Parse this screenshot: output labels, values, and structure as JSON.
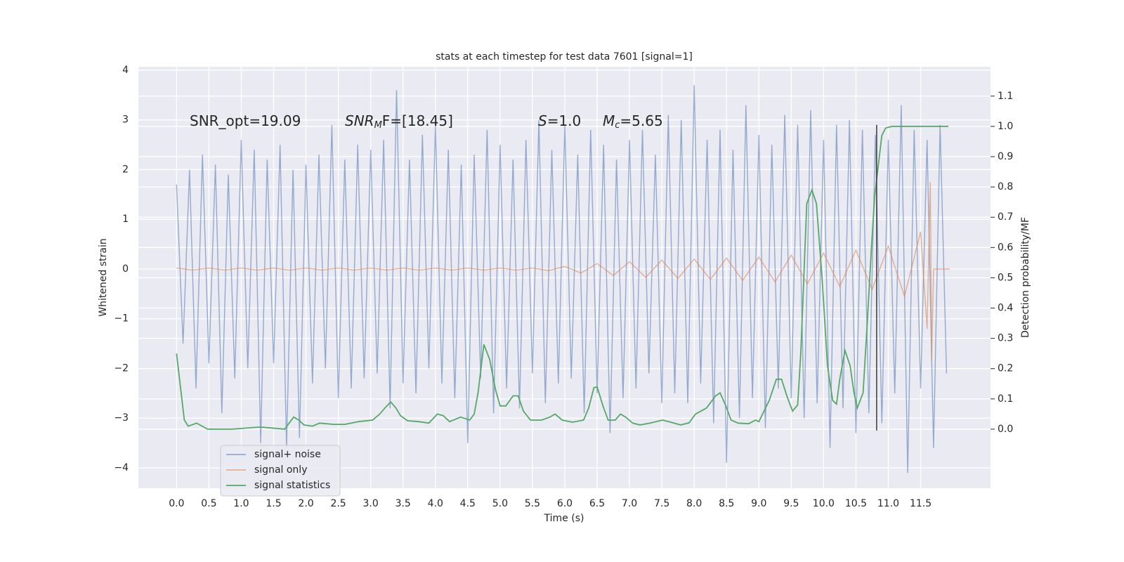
{
  "chart_data": {
    "type": "line",
    "title": "stats at each timestep for test data 7601 [signal=1]",
    "xlabel": "Time (s)",
    "ylabel": "Whitened strain",
    "y2label": "Detection probability/MF",
    "xlim": [
      -0.59,
      12.58
    ],
    "ylim": [
      -4.41,
      4.07
    ],
    "y2lim": [
      -0.195,
      1.197
    ],
    "xticks": [
      {
        "value": 0,
        "label": "0.0"
      },
      {
        "value": 0.5,
        "label": "0.5"
      },
      {
        "value": 1,
        "label": "1.0"
      },
      {
        "value": 1.5,
        "label": "1.5"
      },
      {
        "value": 2,
        "label": "2.0"
      },
      {
        "value": 2.5,
        "label": "2.5"
      },
      {
        "value": 3,
        "label": "3.0"
      },
      {
        "value": 3.5,
        "label": "3.5"
      },
      {
        "value": 4,
        "label": "4.0"
      },
      {
        "value": 4.5,
        "label": "4.5"
      },
      {
        "value": 5,
        "label": "5.0"
      },
      {
        "value": 5.5,
        "label": "5.5"
      },
      {
        "value": 6,
        "label": "6.0"
      },
      {
        "value": 6.5,
        "label": "6.5"
      },
      {
        "value": 7,
        "label": "7.0"
      },
      {
        "value": 7.5,
        "label": "7.5"
      },
      {
        "value": 8,
        "label": "8.0"
      },
      {
        "value": 8.5,
        "label": "8.5"
      },
      {
        "value": 9,
        "label": "9.0"
      },
      {
        "value": 9.5,
        "label": "9.5"
      },
      {
        "value": 10,
        "label": "10.0"
      },
      {
        "value": 10.5,
        "label": "10.5"
      },
      {
        "value": 11,
        "label": "11.0"
      },
      {
        "value": 11.5,
        "label": "11.5"
      }
    ],
    "yticks": [
      {
        "value": -4,
        "label": "−4"
      },
      {
        "value": -3,
        "label": "−3"
      },
      {
        "value": -2,
        "label": "−2"
      },
      {
        "value": -1,
        "label": "−1"
      },
      0,
      1,
      2,
      3,
      4
    ],
    "y2ticks": [
      {
        "value": 0,
        "label": "0.0"
      },
      {
        "value": 0.1,
        "label": "0.1"
      },
      {
        "value": 0.2,
        "label": "0.2"
      },
      {
        "value": 0.3,
        "label": "0.3"
      },
      {
        "value": 0.4,
        "label": "0.4"
      },
      {
        "value": 0.5,
        "label": "0.5"
      },
      {
        "value": 0.6,
        "label": "0.6"
      },
      {
        "value": 0.7,
        "label": "0.7"
      },
      {
        "value": 0.8,
        "label": "0.8"
      },
      {
        "value": 0.9,
        "label": "0.9"
      },
      {
        "value": 1,
        "label": "1.0"
      },
      {
        "value": 1.1,
        "label": "1.1"
      }
    ],
    "grid": true,
    "legend": "lower left",
    "annotations": [
      {
        "main": "SNR_opt=19.09"
      },
      {
        "main": "SNR",
        "sub": "M",
        "rest": "F=[18.45]"
      },
      {
        "main": "S",
        "rest": "=1.0"
      },
      {
        "main": "M",
        "sub": "c",
        "rest": "=5.65"
      }
    ],
    "vline": {
      "x": 10.82,
      "ymin": -3.25,
      "ymax": 2.9,
      "color": "#3a3a3a"
    },
    "series": [
      {
        "name": "signal+ noise",
        "color": "#4c72b0",
        "x": [
          0,
          0.1,
          0.2,
          0.3,
          0.4,
          0.5,
          0.6,
          0.7,
          0.8,
          0.9,
          1,
          1.1,
          1.2,
          1.3,
          1.4,
          1.5,
          1.6,
          1.7,
          1.8,
          1.9,
          2,
          2.1,
          2.2,
          2.3,
          2.4,
          2.5,
          2.6,
          2.7,
          2.8,
          2.9,
          3,
          3.1,
          3.2,
          3.3,
          3.4,
          3.5,
          3.6,
          3.7,
          3.8,
          3.9,
          4,
          4.1,
          4.2,
          4.3,
          4.4,
          4.5,
          4.6,
          4.7,
          4.8,
          4.9,
          5,
          5.1,
          5.2,
          5.3,
          5.4,
          5.5,
          5.6,
          5.7,
          5.8,
          5.9,
          6,
          6.1,
          6.2,
          6.3,
          6.4,
          6.5,
          6.6,
          6.7,
          6.8,
          6.9,
          7,
          7.1,
          7.2,
          7.3,
          7.4,
          7.5,
          7.6,
          7.7,
          7.8,
          7.9,
          8,
          8.1,
          8.2,
          8.3,
          8.4,
          8.5,
          8.6,
          8.7,
          8.8,
          8.9,
          9,
          9.1,
          9.2,
          9.3,
          9.4,
          9.5,
          9.6,
          9.7,
          9.8,
          9.9,
          10,
          10.1,
          10.2,
          10.3,
          10.4,
          10.5,
          10.6,
          10.7,
          10.8,
          10.9,
          11,
          11.1,
          11.2,
          11.3,
          11.4,
          11.5,
          11.6,
          11.7,
          11.8,
          11.9
        ],
        "values": [
          1.7,
          -1.5,
          2.0,
          -2.4,
          2.3,
          -1.9,
          2.1,
          -2.9,
          1.9,
          -2.2,
          2.6,
          -2.0,
          2.4,
          -3.5,
          2.2,
          -1.9,
          2.5,
          -3.6,
          2.0,
          -3.4,
          2.1,
          -2.3,
          2.3,
          -2.0,
          2.9,
          -2.6,
          2.2,
          -2.4,
          2.5,
          -2.2,
          2.4,
          -2.1,
          2.6,
          -2.8,
          3.6,
          -2.3,
          2.2,
          -2.5,
          2.7,
          -2.0,
          2.9,
          -2.3,
          2.4,
          -2.6,
          2.1,
          -3.5,
          2.3,
          -2.2,
          2.8,
          -2.9,
          2.5,
          -2.4,
          2.2,
          -2.8,
          2.6,
          -2.1,
          3.0,
          -2.7,
          2.4,
          -2.3,
          2.9,
          -2.2,
          2.3,
          -2.9,
          2.8,
          -2.5,
          2.5,
          -3.3,
          2.2,
          -2.6,
          2.6,
          -2.4,
          2.8,
          -2.1,
          2.3,
          -2.7,
          3.1,
          -2.5,
          3.0,
          -2.7,
          3.7,
          -2.3,
          2.6,
          -3.1,
          2.8,
          -3.9,
          2.4,
          -3.0,
          3.3,
          -2.6,
          2.7,
          -3.2,
          2.5,
          -2.4,
          3.1,
          -2.6,
          2.9,
          -3.0,
          3.2,
          -2.7,
          2.6,
          -3.6,
          2.9,
          -2.8,
          3.0,
          -3.3,
          2.8,
          -2.9,
          2.7,
          -3.1,
          2.6,
          -2.5,
          3.3,
          -4.1,
          2.8,
          -2.4,
          2.6,
          -3.6,
          2.9,
          -2.1
        ]
      },
      {
        "name": "signal only",
        "color": "#dd8452",
        "x": [
          0,
          0.25,
          0.5,
          0.75,
          1,
          1.25,
          1.5,
          1.75,
          2,
          2.25,
          2.5,
          2.75,
          3,
          3.25,
          3.5,
          3.75,
          4,
          4.25,
          4.5,
          4.75,
          5,
          5.25,
          5.5,
          5.75,
          6,
          6.25,
          6.5,
          6.75,
          7,
          7.25,
          7.5,
          7.75,
          8,
          8.25,
          8.5,
          8.75,
          9,
          9.25,
          9.5,
          9.75,
          10,
          10.25,
          10.5,
          10.75,
          11,
          11.25,
          11.5,
          11.6,
          11.65,
          11.67,
          11.7,
          11.95
        ],
        "values": [
          0.02,
          -0.02,
          0.02,
          -0.02,
          0.02,
          -0.02,
          0.02,
          -0.02,
          0.02,
          -0.02,
          0.02,
          -0.02,
          0.02,
          -0.02,
          0.02,
          -0.02,
          0.02,
          -0.02,
          0.02,
          -0.02,
          0.02,
          -0.02,
          0.02,
          -0.03,
          0.05,
          -0.08,
          0.11,
          -0.13,
          0.15,
          -0.17,
          0.18,
          -0.19,
          0.2,
          -0.21,
          0.22,
          -0.23,
          0.24,
          -0.26,
          0.28,
          -0.3,
          0.32,
          -0.35,
          0.38,
          -0.41,
          0.46,
          -0.55,
          0.75,
          -1.2,
          1.75,
          -1.85,
          0,
          0
        ]
      },
      {
        "name": "signal statistics",
        "color": "#55a868",
        "axis": "y2",
        "x": [
          0,
          0.12,
          0.18,
          0.31,
          0.48,
          0.86,
          1.29,
          1.67,
          1.81,
          1.89,
          1.97,
          2.1,
          2.21,
          2.43,
          2.6,
          2.81,
          3.03,
          3.14,
          3.22,
          3.31,
          3.39,
          3.46,
          3.57,
          3.74,
          3.9,
          4.03,
          4.12,
          4.22,
          4.39,
          4.53,
          4.6,
          4.66,
          4.75,
          4.84,
          4.93,
          5.0,
          5.09,
          5.2,
          5.28,
          5.36,
          5.47,
          5.64,
          5.77,
          5.85,
          5.96,
          6.12,
          6.29,
          6.37,
          6.45,
          6.5,
          6.59,
          6.67,
          6.78,
          6.86,
          6.94,
          7.05,
          7.16,
          7.32,
          7.51,
          7.64,
          7.79,
          7.92,
          8.02,
          8.19,
          8.33,
          8.4,
          8.49,
          8.57,
          8.68,
          8.84,
          8.95,
          9.0,
          9.16,
          9.27,
          9.35,
          9.44,
          9.52,
          9.6,
          9.65,
          9.74,
          9.82,
          9.89,
          9.98,
          10.06,
          10.14,
          10.2,
          10.25,
          10.33,
          10.41,
          10.47,
          10.52,
          10.61,
          10.68,
          10.74,
          10.79,
          10.85,
          10.9,
          10.96,
          11.06,
          11.93
        ],
        "values": [
          0.25,
          0.03,
          0.01,
          0.02,
          0,
          0,
          0.007,
          0,
          0.04,
          0.03,
          0.014,
          0.01,
          0.02,
          0.016,
          0.016,
          0.025,
          0.03,
          0.05,
          0.07,
          0.09,
          0.07,
          0.045,
          0.028,
          0.025,
          0.02,
          0.05,
          0.045,
          0.025,
          0.04,
          0.03,
          0.05,
          0.12,
          0.28,
          0.23,
          0.13,
          0.077,
          0.077,
          0.11,
          0.11,
          0.06,
          0.03,
          0.03,
          0.04,
          0.05,
          0.03,
          0.023,
          0.03,
          0.07,
          0.137,
          0.14,
          0.077,
          0.03,
          0.03,
          0.05,
          0.04,
          0.02,
          0.014,
          0.02,
          0.03,
          0.023,
          0.014,
          0.021,
          0.05,
          0.07,
          0.11,
          0.12,
          0.077,
          0.03,
          0.02,
          0.018,
          0.03,
          0.025,
          0.095,
          0.165,
          0.165,
          0.105,
          0.06,
          0.08,
          0.26,
          0.745,
          0.79,
          0.745,
          0.49,
          0.21,
          0.095,
          0.083,
          0.165,
          0.26,
          0.21,
          0.12,
          0.07,
          0.12,
          0.37,
          0.6,
          0.77,
          0.88,
          0.97,
          0.995,
          1.0,
          1.0
        ]
      }
    ]
  }
}
